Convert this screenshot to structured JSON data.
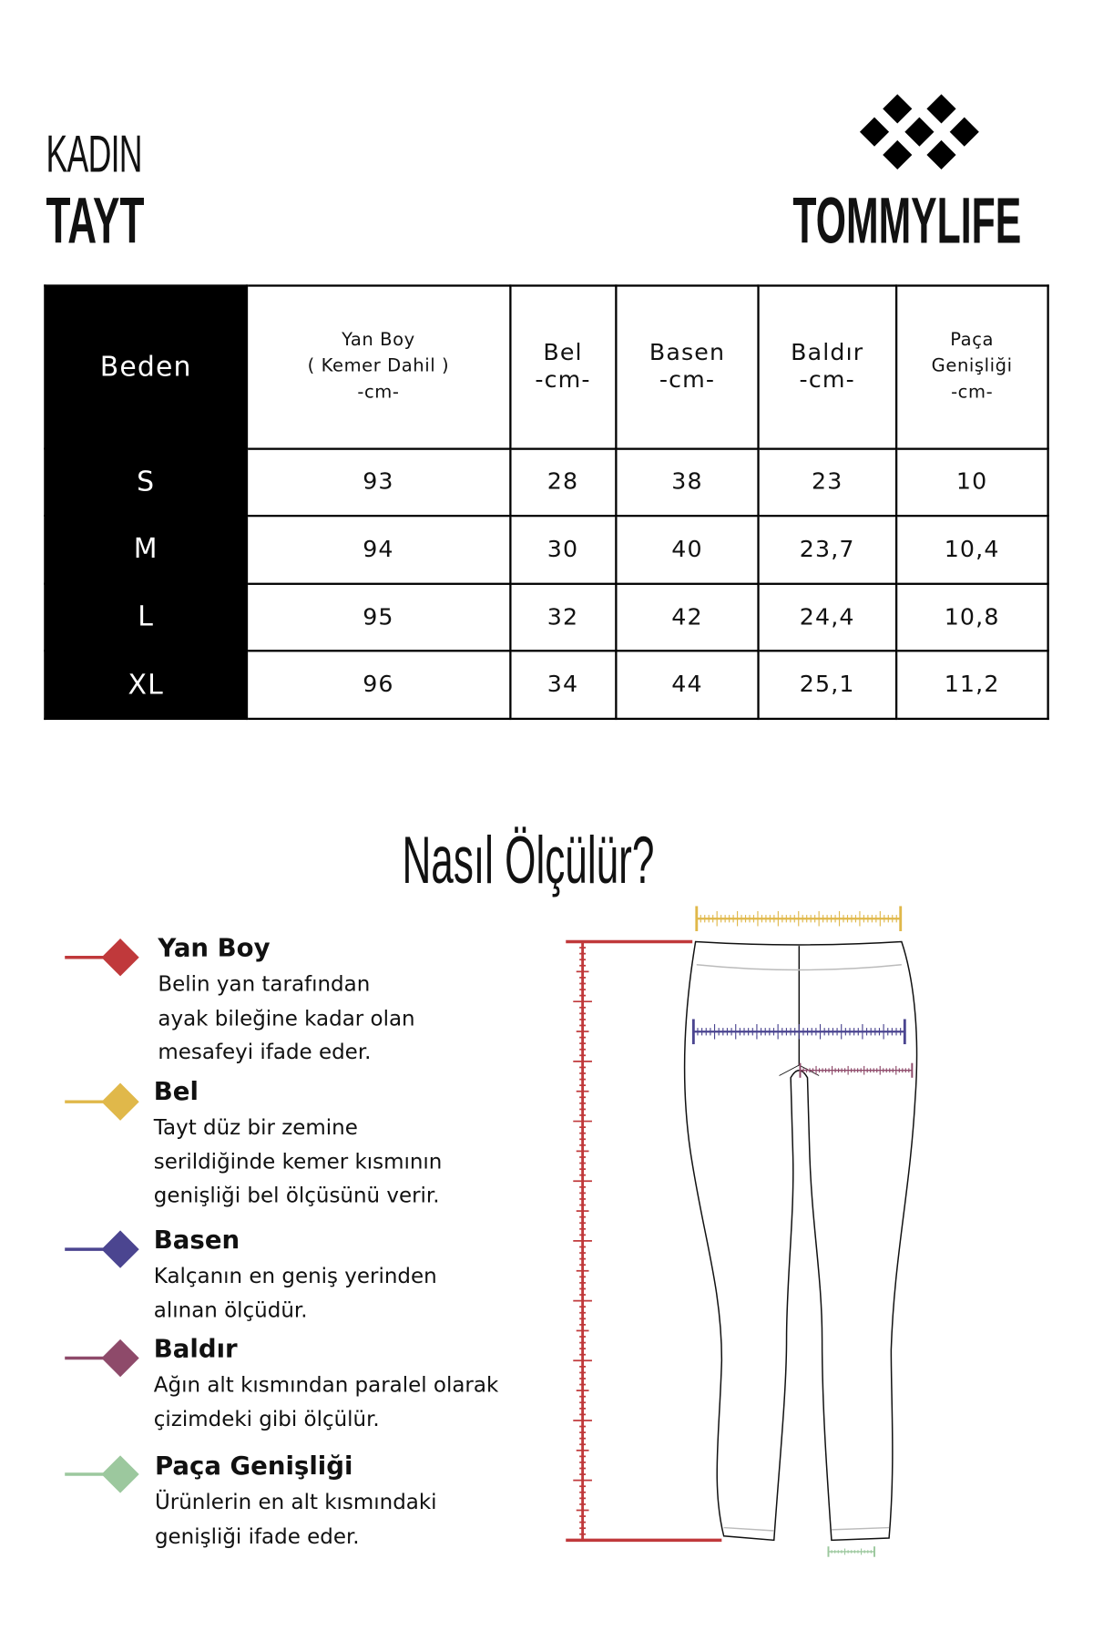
{
  "header": {
    "category": "KADIN",
    "product": "TAYT",
    "brand": "TOMMYLIFE",
    "logo_icon": "diamond-cluster-logo"
  },
  "table": {
    "size_header": "Beden",
    "columns": [
      [
        "Yan Boy",
        "( Kemer Dahil )",
        "-cm-"
      ],
      [
        "Bel",
        "-cm-"
      ],
      [
        "Basen",
        "-cm-"
      ],
      [
        "Baldır",
        "-cm-"
      ],
      [
        "Paça",
        "Genişliği",
        "-cm-"
      ]
    ],
    "rows": [
      {
        "size": "S",
        "values": [
          "93",
          "28",
          "38",
          "23",
          "10"
        ]
      },
      {
        "size": "M",
        "values": [
          "94",
          "30",
          "40",
          "23,7",
          "10,4"
        ]
      },
      {
        "size": "L",
        "values": [
          "95",
          "32",
          "42",
          "24,4",
          "10,8"
        ]
      },
      {
        "size": "XL",
        "values": [
          "96",
          "34",
          "44",
          "25,1",
          "11,2"
        ]
      }
    ]
  },
  "guide": {
    "title": "Nasıl Ölçülür?",
    "items": [
      {
        "title": "Yan Boy",
        "lines": [
          "Belin yan tarafından",
          "ayak bileğine kadar olan",
          "mesafeyi ifade eder."
        ],
        "color": "#c0393b"
      },
      {
        "title": "Bel",
        "lines": [
          "Tayt düz bir zemine",
          "serildiğinde kemer kısmının",
          "genişliği bel ölçüsünü verir."
        ],
        "color": "#e0b84a"
      },
      {
        "title": "Basen",
        "lines": [
          "Kalçanın en geniş yerinden",
          "alınan ölçüdür."
        ],
        "color": "#4b4590"
      },
      {
        "title": "Baldır",
        "lines": [
          "Ağın alt kısmından paralel olarak",
          "çizimdeki gibi ölçülür."
        ],
        "color": "#8e4a6a"
      },
      {
        "title": "Paça Genişliği",
        "lines": [
          "Ürünlerin en alt kısmındaki",
          "genişliği ifade eder."
        ],
        "color": "#9cc89e"
      }
    ]
  }
}
